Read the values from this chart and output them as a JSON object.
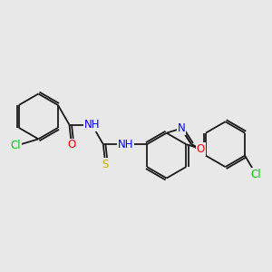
{
  "bg_color": "#e8e8e8",
  "bond_color": "#1a1a1a",
  "atom_colors": {
    "O": "#ff0000",
    "N": "#0000ff",
    "S": "#ccaa00",
    "Cl": "#00cc00",
    "C": "#1a1a1a"
  },
  "figsize": [
    3.0,
    3.0
  ],
  "dpi": 100
}
